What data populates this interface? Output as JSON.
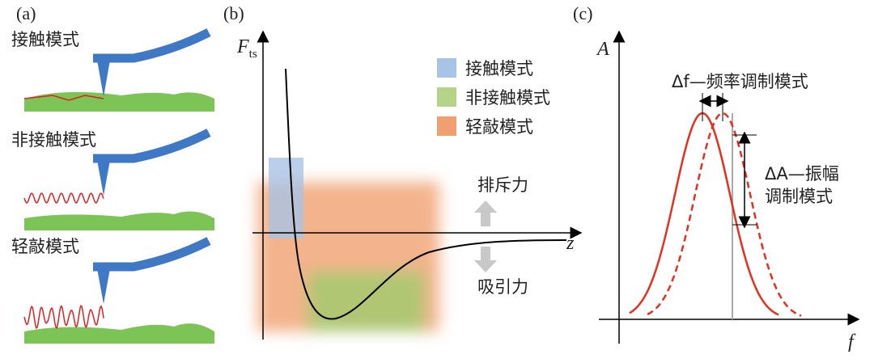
{
  "panels": [
    {
      "label": "(a)",
      "modes": [
        "接触模式",
        "非接触模式",
        "轻敲模式"
      ]
    },
    {
      "label": "(b)",
      "y_axis": {
        "symbol": "F",
        "subscript": "ts"
      },
      "x_axis": "z",
      "legend": [
        "接触模式",
        "非接触模式",
        "轻敲模式"
      ],
      "repulsive": "排斥力",
      "attractive": "吸引力"
    },
    {
      "label": "(c)",
      "y_axis": "A",
      "x_axis": "f",
      "annotations": [
        "Δf—频率调制模式",
        "ΔA—振幅",
        "调制模式"
      ]
    }
  ]
}
